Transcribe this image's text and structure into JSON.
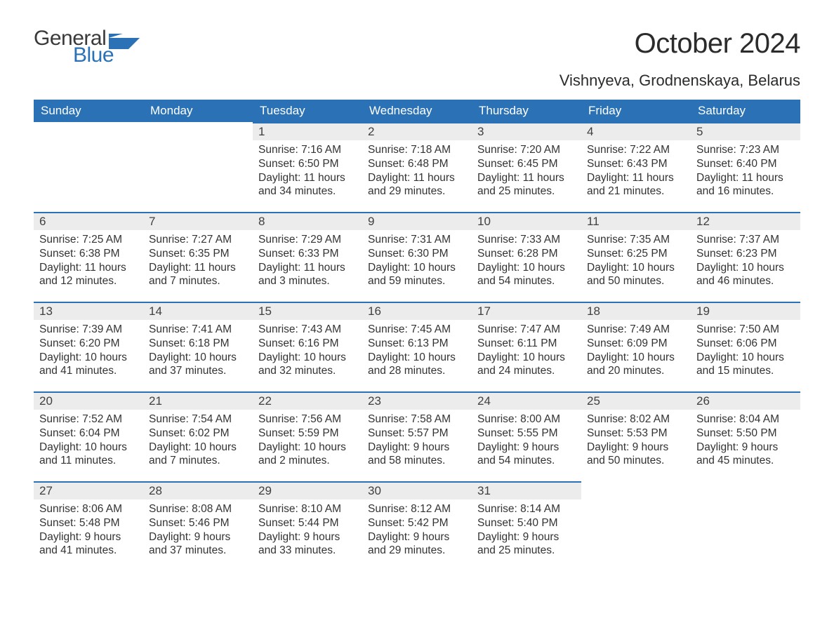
{
  "logo": {
    "word1": "General",
    "word2": "Blue"
  },
  "title": "October 2024",
  "subtitle": "Vishnyeva, Grodnenskaya, Belarus",
  "colors": {
    "header_bg": "#2a72b5",
    "header_text": "#ffffff",
    "daynum_bg": "#ececec",
    "week_border": "#2a72b5",
    "body_text": "#333333",
    "page_bg": "#ffffff",
    "logo_gray": "#3a3a3a",
    "logo_blue": "#2a72b5"
  },
  "fontsize": {
    "title": 40,
    "subtitle": 22,
    "dayhead": 17,
    "daynum": 17,
    "body": 15.5
  },
  "day_headers": [
    "Sunday",
    "Monday",
    "Tuesday",
    "Wednesday",
    "Thursday",
    "Friday",
    "Saturday"
  ],
  "weeks": [
    [
      {
        "blank": true
      },
      {
        "blank": true
      },
      {
        "day": "1",
        "sunrise": "Sunrise: 7:16 AM",
        "sunset": "Sunset: 6:50 PM",
        "daylight": "Daylight: 11 hours and 34 minutes."
      },
      {
        "day": "2",
        "sunrise": "Sunrise: 7:18 AM",
        "sunset": "Sunset: 6:48 PM",
        "daylight": "Daylight: 11 hours and 29 minutes."
      },
      {
        "day": "3",
        "sunrise": "Sunrise: 7:20 AM",
        "sunset": "Sunset: 6:45 PM",
        "daylight": "Daylight: 11 hours and 25 minutes."
      },
      {
        "day": "4",
        "sunrise": "Sunrise: 7:22 AM",
        "sunset": "Sunset: 6:43 PM",
        "daylight": "Daylight: 11 hours and 21 minutes."
      },
      {
        "day": "5",
        "sunrise": "Sunrise: 7:23 AM",
        "sunset": "Sunset: 6:40 PM",
        "daylight": "Daylight: 11 hours and 16 minutes."
      }
    ],
    [
      {
        "day": "6",
        "sunrise": "Sunrise: 7:25 AM",
        "sunset": "Sunset: 6:38 PM",
        "daylight": "Daylight: 11 hours and 12 minutes."
      },
      {
        "day": "7",
        "sunrise": "Sunrise: 7:27 AM",
        "sunset": "Sunset: 6:35 PM",
        "daylight": "Daylight: 11 hours and 7 minutes."
      },
      {
        "day": "8",
        "sunrise": "Sunrise: 7:29 AM",
        "sunset": "Sunset: 6:33 PM",
        "daylight": "Daylight: 11 hours and 3 minutes."
      },
      {
        "day": "9",
        "sunrise": "Sunrise: 7:31 AM",
        "sunset": "Sunset: 6:30 PM",
        "daylight": "Daylight: 10 hours and 59 minutes."
      },
      {
        "day": "10",
        "sunrise": "Sunrise: 7:33 AM",
        "sunset": "Sunset: 6:28 PM",
        "daylight": "Daylight: 10 hours and 54 minutes."
      },
      {
        "day": "11",
        "sunrise": "Sunrise: 7:35 AM",
        "sunset": "Sunset: 6:25 PM",
        "daylight": "Daylight: 10 hours and 50 minutes."
      },
      {
        "day": "12",
        "sunrise": "Sunrise: 7:37 AM",
        "sunset": "Sunset: 6:23 PM",
        "daylight": "Daylight: 10 hours and 46 minutes."
      }
    ],
    [
      {
        "day": "13",
        "sunrise": "Sunrise: 7:39 AM",
        "sunset": "Sunset: 6:20 PM",
        "daylight": "Daylight: 10 hours and 41 minutes."
      },
      {
        "day": "14",
        "sunrise": "Sunrise: 7:41 AM",
        "sunset": "Sunset: 6:18 PM",
        "daylight": "Daylight: 10 hours and 37 minutes."
      },
      {
        "day": "15",
        "sunrise": "Sunrise: 7:43 AM",
        "sunset": "Sunset: 6:16 PM",
        "daylight": "Daylight: 10 hours and 32 minutes."
      },
      {
        "day": "16",
        "sunrise": "Sunrise: 7:45 AM",
        "sunset": "Sunset: 6:13 PM",
        "daylight": "Daylight: 10 hours and 28 minutes."
      },
      {
        "day": "17",
        "sunrise": "Sunrise: 7:47 AM",
        "sunset": "Sunset: 6:11 PM",
        "daylight": "Daylight: 10 hours and 24 minutes."
      },
      {
        "day": "18",
        "sunrise": "Sunrise: 7:49 AM",
        "sunset": "Sunset: 6:09 PM",
        "daylight": "Daylight: 10 hours and 20 minutes."
      },
      {
        "day": "19",
        "sunrise": "Sunrise: 7:50 AM",
        "sunset": "Sunset: 6:06 PM",
        "daylight": "Daylight: 10 hours and 15 minutes."
      }
    ],
    [
      {
        "day": "20",
        "sunrise": "Sunrise: 7:52 AM",
        "sunset": "Sunset: 6:04 PM",
        "daylight": "Daylight: 10 hours and 11 minutes."
      },
      {
        "day": "21",
        "sunrise": "Sunrise: 7:54 AM",
        "sunset": "Sunset: 6:02 PM",
        "daylight": "Daylight: 10 hours and 7 minutes."
      },
      {
        "day": "22",
        "sunrise": "Sunrise: 7:56 AM",
        "sunset": "Sunset: 5:59 PM",
        "daylight": "Daylight: 10 hours and 2 minutes."
      },
      {
        "day": "23",
        "sunrise": "Sunrise: 7:58 AM",
        "sunset": "Sunset: 5:57 PM",
        "daylight": "Daylight: 9 hours and 58 minutes."
      },
      {
        "day": "24",
        "sunrise": "Sunrise: 8:00 AM",
        "sunset": "Sunset: 5:55 PM",
        "daylight": "Daylight: 9 hours and 54 minutes."
      },
      {
        "day": "25",
        "sunrise": "Sunrise: 8:02 AM",
        "sunset": "Sunset: 5:53 PM",
        "daylight": "Daylight: 9 hours and 50 minutes."
      },
      {
        "day": "26",
        "sunrise": "Sunrise: 8:04 AM",
        "sunset": "Sunset: 5:50 PM",
        "daylight": "Daylight: 9 hours and 45 minutes."
      }
    ],
    [
      {
        "day": "27",
        "sunrise": "Sunrise: 8:06 AM",
        "sunset": "Sunset: 5:48 PM",
        "daylight": "Daylight: 9 hours and 41 minutes."
      },
      {
        "day": "28",
        "sunrise": "Sunrise: 8:08 AM",
        "sunset": "Sunset: 5:46 PM",
        "daylight": "Daylight: 9 hours and 37 minutes."
      },
      {
        "day": "29",
        "sunrise": "Sunrise: 8:10 AM",
        "sunset": "Sunset: 5:44 PM",
        "daylight": "Daylight: 9 hours and 33 minutes."
      },
      {
        "day": "30",
        "sunrise": "Sunrise: 8:12 AM",
        "sunset": "Sunset: 5:42 PM",
        "daylight": "Daylight: 9 hours and 29 minutes."
      },
      {
        "day": "31",
        "sunrise": "Sunrise: 8:14 AM",
        "sunset": "Sunset: 5:40 PM",
        "daylight": "Daylight: 9 hours and 25 minutes."
      },
      {
        "blank": true
      },
      {
        "blank": true
      }
    ]
  ]
}
